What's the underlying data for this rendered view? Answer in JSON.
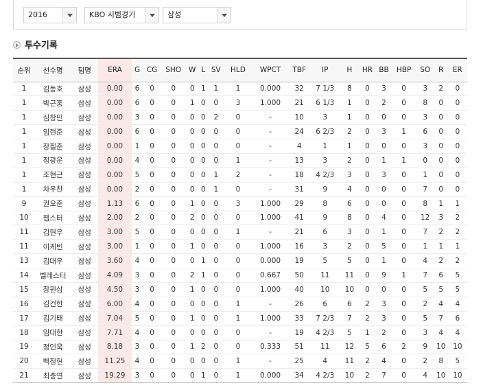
{
  "filters": {
    "year": "2016",
    "series": "KBO 시범경기",
    "team": "삼성"
  },
  "section_title": "투수기록",
  "columns": [
    "순위",
    "선수명",
    "팀명",
    "ERA",
    "G",
    "CG",
    "SHO",
    "W",
    "L",
    "SV",
    "HLD",
    "WPCT",
    "TBF",
    "IP",
    "H",
    "HR",
    "BB",
    "HBP",
    "SO",
    "R",
    "ER"
  ],
  "rows": [
    [
      "1",
      "김동호",
      "삼성",
      "0.00",
      "6",
      "0",
      "0",
      "0",
      "1",
      "1",
      "1",
      "0.000",
      "32",
      "7 1/3",
      "8",
      "0",
      "3",
      "0",
      "3",
      "2",
      "0"
    ],
    [
      "1",
      "박근홍",
      "삼성",
      "0.00",
      "6",
      "0",
      "0",
      "1",
      "0",
      "0",
      "3",
      "1.000",
      "21",
      "6 1/3",
      "1",
      "0",
      "2",
      "0",
      "8",
      "0",
      "0"
    ],
    [
      "1",
      "심창민",
      "삼성",
      "0.00",
      "3",
      "0",
      "0",
      "0",
      "0",
      "2",
      "0",
      "-",
      "10",
      "3",
      "1",
      "0",
      "0",
      "0",
      "3",
      "0",
      "0"
    ],
    [
      "1",
      "임현준",
      "삼성",
      "0.00",
      "6",
      "0",
      "0",
      "0",
      "0",
      "0",
      "0",
      "-",
      "24",
      "6 2/3",
      "2",
      "0",
      "3",
      "1",
      "6",
      "0",
      "0"
    ],
    [
      "1",
      "장필준",
      "삼성",
      "0.00",
      "1",
      "0",
      "0",
      "0",
      "0",
      "0",
      "0",
      "-",
      "4",
      "1",
      "1",
      "0",
      "0",
      "0",
      "3",
      "0",
      "0"
    ],
    [
      "1",
      "정광운",
      "삼성",
      "0.00",
      "4",
      "0",
      "0",
      "0",
      "0",
      "0",
      "1",
      "-",
      "13",
      "3",
      "2",
      "0",
      "1",
      "1",
      "0",
      "0",
      "0"
    ],
    [
      "1",
      "조현근",
      "삼성",
      "0.00",
      "5",
      "0",
      "0",
      "0",
      "0",
      "1",
      "2",
      "-",
      "18",
      "4 2/3",
      "3",
      "0",
      "3",
      "0",
      "1",
      "0",
      "0"
    ],
    [
      "1",
      "차우찬",
      "삼성",
      "0.00",
      "2",
      "0",
      "0",
      "0",
      "0",
      "1",
      "0",
      "-",
      "31",
      "9",
      "4",
      "0",
      "0",
      "0",
      "7",
      "0",
      "0"
    ],
    [
      "9",
      "권오준",
      "삼성",
      "1.13",
      "6",
      "0",
      "0",
      "1",
      "0",
      "0",
      "3",
      "1.000",
      "29",
      "8",
      "6",
      "0",
      "0",
      "0",
      "8",
      "1",
      "1"
    ],
    [
      "10",
      "웹스터",
      "삼성",
      "2.00",
      "2",
      "0",
      "0",
      "2",
      "0",
      "0",
      "0",
      "1.000",
      "41",
      "9",
      "8",
      "0",
      "4",
      "0",
      "12",
      "3",
      "2"
    ],
    [
      "11",
      "김현우",
      "삼성",
      "3.00",
      "5",
      "0",
      "0",
      "0",
      "0",
      "0",
      "1",
      "-",
      "21",
      "6",
      "3",
      "0",
      "1",
      "0",
      "7",
      "2",
      "2"
    ],
    [
      "11",
      "이케빈",
      "삼성",
      "3.00",
      "1",
      "0",
      "0",
      "1",
      "0",
      "0",
      "0",
      "1.000",
      "16",
      "3",
      "2",
      "0",
      "5",
      "0",
      "1",
      "1",
      "1"
    ],
    [
      "13",
      "김대우",
      "삼성",
      "3.60",
      "4",
      "0",
      "0",
      "0",
      "1",
      "0",
      "0",
      "0.000",
      "19",
      "5",
      "5",
      "0",
      "1",
      "0",
      "4",
      "2",
      "2"
    ],
    [
      "14",
      "벨레스터",
      "삼성",
      "4.09",
      "3",
      "0",
      "0",
      "2",
      "1",
      "0",
      "0",
      "0.667",
      "50",
      "11",
      "11",
      "0",
      "9",
      "1",
      "7",
      "6",
      "5"
    ],
    [
      "15",
      "장원삼",
      "삼성",
      "4.50",
      "3",
      "0",
      "0",
      "1",
      "0",
      "0",
      "0",
      "1.000",
      "40",
      "10",
      "10",
      "0",
      "0",
      "0",
      "5",
      "5",
      "5"
    ],
    [
      "16",
      "김건한",
      "삼성",
      "6.00",
      "4",
      "0",
      "0",
      "0",
      "0",
      "0",
      "1",
      "-",
      "26",
      "6",
      "6",
      "2",
      "3",
      "0",
      "2",
      "4",
      "4"
    ],
    [
      "17",
      "김기태",
      "삼성",
      "7.04",
      "5",
      "0",
      "0",
      "1",
      "0",
      "0",
      "1",
      "1.000",
      "33",
      "7 2/3",
      "7",
      "2",
      "3",
      "0",
      "5",
      "7",
      "6"
    ],
    [
      "18",
      "임대한",
      "삼성",
      "7.71",
      "4",
      "0",
      "0",
      "0",
      "0",
      "0",
      "0",
      "-",
      "19",
      "4 2/3",
      "5",
      "1",
      "2",
      "0",
      "3",
      "4",
      "4"
    ],
    [
      "19",
      "정인욱",
      "삼성",
      "8.18",
      "3",
      "0",
      "0",
      "1",
      "2",
      "0",
      "0",
      "0.333",
      "51",
      "11",
      "12",
      "5",
      "6",
      "2",
      "9",
      "10",
      "10"
    ],
    [
      "20",
      "백정현",
      "삼성",
      "11.25",
      "4",
      "0",
      "0",
      "0",
      "0",
      "0",
      "1",
      "-",
      "25",
      "4",
      "11",
      "2",
      "4",
      "0",
      "2",
      "8",
      "5"
    ],
    [
      "21",
      "최충연",
      "삼성",
      "19.29",
      "3",
      "0",
      "0",
      "0",
      "1",
      "0",
      "1",
      "0.000",
      "34",
      "4 2/3",
      "10",
      "2",
      "7",
      "0",
      "4",
      "10",
      "10"
    ]
  ]
}
